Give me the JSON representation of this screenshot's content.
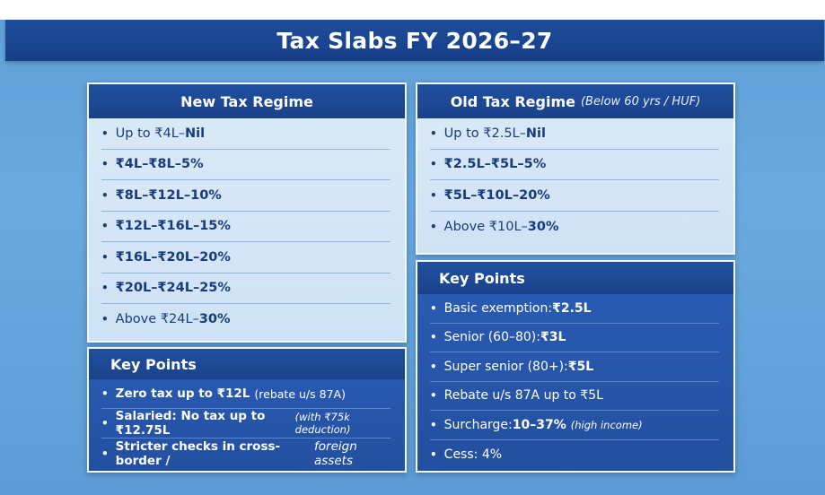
{
  "title": "Tax Slabs FY 2026–27",
  "new_regime": {
    "heading": "New Tax Regime",
    "slabs": [
      {
        "range": "Up to ₹4L",
        "sep": " – ",
        "rate": "Nil"
      },
      {
        "range": "₹4L–₹8L",
        "sep": " – ",
        "rate": "5%"
      },
      {
        "range": "₹8L–₹12L",
        "sep": " – ",
        "rate": "10%"
      },
      {
        "range": "₹12L–₹16L",
        "sep": " – ",
        "rate": "15%"
      },
      {
        "range": "₹16L–₹20L",
        "sep": " – ",
        "rate": "20%"
      },
      {
        "range": "₹20L–₹24L",
        "sep": " – ",
        "rate": "25%"
      },
      {
        "range": "Above ₹24L",
        "sep": " – ",
        "rate": "30%"
      }
    ],
    "key_points_heading": "Key Points",
    "key_points": [
      {
        "text": "Zero tax up to ₹12L",
        "note": "(rebate u/s 87A)"
      },
      {
        "text": "Salaried: No tax up to ₹12.75L",
        "note": "(with ₹75k deduction)"
      },
      {
        "text": "Stricter checks in cross-border / ",
        "note": "foreign assets"
      }
    ]
  },
  "old_regime": {
    "heading": "Old Tax Regime",
    "heading_sub": "(Below 60 yrs / HUF)",
    "slabs": [
      {
        "range": "Up to ₹2.5L",
        "sep": " – ",
        "rate": "Nil"
      },
      {
        "range": "₹2.5L–₹5L",
        "sep": " – ",
        "rate": "5%"
      },
      {
        "range": "₹5L–₹10L",
        "sep": " – ",
        "rate": "20%"
      },
      {
        "range": "Above ₹10L",
        "sep": " – ",
        "rate": "30%"
      }
    ],
    "key_points_heading": "Key Points",
    "key_points": [
      {
        "label": "Basic exemption: ",
        "value": "₹2.5L",
        "note": ""
      },
      {
        "label": "Senior (60–80): ",
        "value": "₹3L",
        "note": ""
      },
      {
        "label": "Super senior (80+): ",
        "value": "₹5L",
        "note": ""
      },
      {
        "label": "Rebate u/s 87A up to ₹5L",
        "value": "",
        "note": ""
      },
      {
        "label": "Surcharge: ",
        "value": "10–37%",
        "note": "(high income)"
      },
      {
        "label": "Cess: 4%",
        "value": "",
        "note": ""
      }
    ]
  },
  "bullet_char": "•",
  "colors": {
    "accent": "#1d4c9b",
    "background": "#5f9fd8",
    "light_panel": "#d6e7f7",
    "dark_panel": "#2a5db6"
  }
}
